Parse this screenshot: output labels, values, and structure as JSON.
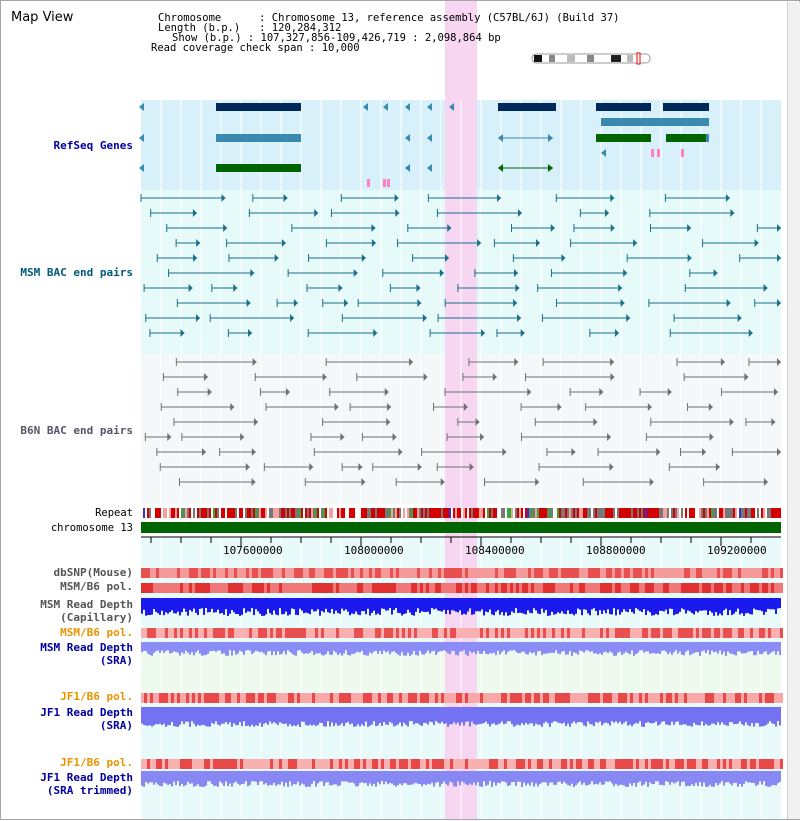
{
  "title": "Map View",
  "info": {
    "chromosome_label": "Chromosome",
    "chromosome_value": "Chromosome 13, reference assembly (C57BL/6J) (Build 37)",
    "length_label": "Length (b.p.)",
    "length_value": "120,284,312",
    "show_label": "Show (b.p.)",
    "show_value": "107,327,856-109,426,719 : 2,098,864 bp",
    "coverage_label": "Read coverage check span",
    "coverage_value": "10,000"
  },
  "tracks": {
    "refseq": "RefSeq Genes",
    "msm_bac": "MSM BAC end pairs",
    "b6n_bac": "B6N BAC end pairs",
    "repeat": "Repeat",
    "chromosome": "chromosome 13",
    "dbsnp": "dbSNP(Mouse)",
    "msm_b6_pol_1": "MSM/B6 pol.",
    "msm_read_depth_cap_1": "MSM Read Depth",
    "msm_read_depth_cap_2": "(Capillary)",
    "msm_b6_pol_2": "MSM/B6 pol.",
    "msm_read_depth_sra_1": "MSM Read Depth",
    "msm_read_depth_sra_2": "(SRA)",
    "jf1_b6_pol_1": "JF1/B6 pol.",
    "jf1_read_depth_sra_1": "JF1 Read Depth",
    "jf1_read_depth_sra_2": "(SRA)",
    "jf1_b6_pol_2": "JF1/B6 pol.",
    "jf1_read_depth_trim_1": "JF1 Read Depth",
    "jf1_read_depth_trim_2": "(SRA trimmed)"
  },
  "axis": {
    "ticks": [
      "107600000",
      "108000000",
      "108400000",
      "108800000",
      "109200000"
    ]
  },
  "colors": {
    "refseq_bg": "#d8f0fa",
    "bac_bg": "#e6fafa",
    "b6n_bg": "#f4f8fa",
    "highlight": "#f6d6f0",
    "chromosome": "#006400",
    "msm_label": "#005a78",
    "refseq_label": "#0000a0",
    "orange_label": "#e89400",
    "blue_label": "#0000a0"
  }
}
